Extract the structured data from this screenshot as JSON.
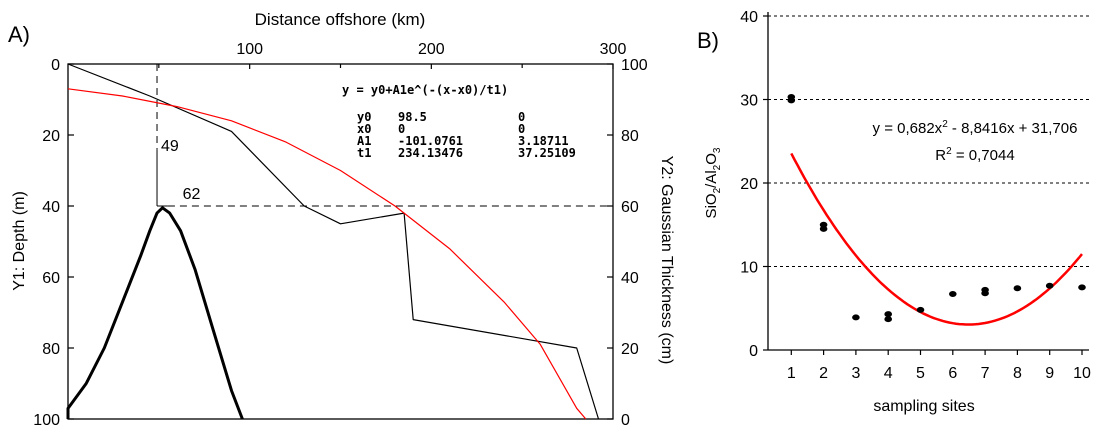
{
  "chart_data": [
    {
      "type": "line",
      "panel_label": "A)",
      "x_top_label": "Distance offshore (km)",
      "x_top_ticks": [
        "100",
        "200",
        "300"
      ],
      "xlim": [
        0,
        300
      ],
      "y1_label": "Y1: Depth (m)",
      "y1_ticks": [
        "0",
        "20",
        "40",
        "60",
        "80",
        "100"
      ],
      "y1lim": [
        0,
        100
      ],
      "y2_label": "Y2: Gaussian Thickness (cm)",
      "y2_ticks": [
        "100",
        "80",
        "60",
        "40",
        "20",
        "0"
      ],
      "y2lim": [
        0,
        100
      ],
      "series": [
        {
          "color": "#000000",
          "axis": "y1",
          "points": [
            [
              0,
              0
            ],
            [
              45,
              9
            ],
            [
              90,
              19
            ],
            [
              130,
              40
            ],
            [
              150,
              45
            ],
            [
              185,
              42
            ],
            [
              190,
              72
            ],
            [
              280,
              80
            ],
            [
              292,
              100
            ]
          ]
        },
        {
          "color": "#ff0000",
          "axis": "y1",
          "points": [
            [
              0,
              7
            ],
            [
              30,
              9
            ],
            [
              60,
              12
            ],
            [
              90,
              16
            ],
            [
              120,
              22
            ],
            [
              150,
              30
            ],
            [
              180,
              40
            ],
            [
              210,
              52
            ],
            [
              240,
              67
            ],
            [
              260,
              79
            ],
            [
              280,
              97
            ],
            [
              285,
              100
            ]
          ]
        },
        {
          "color": "#000000",
          "axis": "y2",
          "points": [
            [
              -5,
              0
            ],
            [
              0,
              3
            ],
            [
              10,
              10
            ],
            [
              20,
              20
            ],
            [
              30,
              33
            ],
            [
              40,
              46
            ],
            [
              45,
              53
            ],
            [
              49,
              58
            ],
            [
              52,
              59.5
            ],
            [
              56,
              58
            ],
            [
              62,
              53
            ],
            [
              70,
              42
            ],
            [
              80,
              25
            ],
            [
              90,
              8
            ],
            [
              96,
              0
            ]
          ]
        }
      ],
      "annotations": [
        {
          "text": "49",
          "x": 49,
          "y": 24
        },
        {
          "text": "62",
          "x": 62,
          "y": 38
        }
      ],
      "guides": {
        "vertical_x": 49,
        "horizontal_y": 40
      },
      "equation": "y = y0+A1e^(-(x-x0)/t1)",
      "fit_table": [
        [
          "y0",
          "98.5",
          "0"
        ],
        [
          "x0",
          "0",
          "0"
        ],
        [
          "A1",
          "-101.0761",
          "3.18711"
        ],
        [
          "t1",
          "234.13476",
          "37.25109"
        ]
      ]
    },
    {
      "type": "scatter",
      "panel_label": "B)",
      "xlabel": "sampling sites",
      "ylabel": "SiO2/Al2O3",
      "ylabel_base": "SiO",
      "ylabel_sub1": "2",
      "ylabel_mid": "/Al",
      "ylabel_sub2": "2",
      "ylabel_tail": "O",
      "ylabel_sub3": "3",
      "xlim": [
        0,
        10
      ],
      "ylim": [
        0,
        40
      ],
      "x_ticks": [
        "1",
        "2",
        "3",
        "4",
        "5",
        "6",
        "7",
        "8",
        "9",
        "10"
      ],
      "y_ticks": [
        "0",
        "10",
        "20",
        "30",
        "40"
      ],
      "grid": "horizontal-dashed",
      "points": [
        [
          1,
          29.9
        ],
        [
          1,
          30.3
        ],
        [
          2,
          14.5
        ],
        [
          2,
          15.0
        ],
        [
          3,
          3.9
        ],
        [
          4,
          3.7
        ],
        [
          4,
          4.3
        ],
        [
          5,
          4.8
        ],
        [
          6,
          6.7
        ],
        [
          7,
          6.8
        ],
        [
          7,
          7.2
        ],
        [
          8,
          7.4
        ],
        [
          9,
          7.7
        ],
        [
          10,
          7.5
        ]
      ],
      "trendline": {
        "a": 0.682,
        "b": -8.8416,
        "c": 31.706,
        "x_range": [
          1,
          10
        ],
        "color": "#ff0000"
      },
      "equation_pre": "y = 0,682x",
      "equation_sup": "2",
      "equation_post": " - 8,8416x + 31,706",
      "r2_pre": "R",
      "r2_sup": "2",
      "r2_post": " = 0,7044"
    }
  ]
}
